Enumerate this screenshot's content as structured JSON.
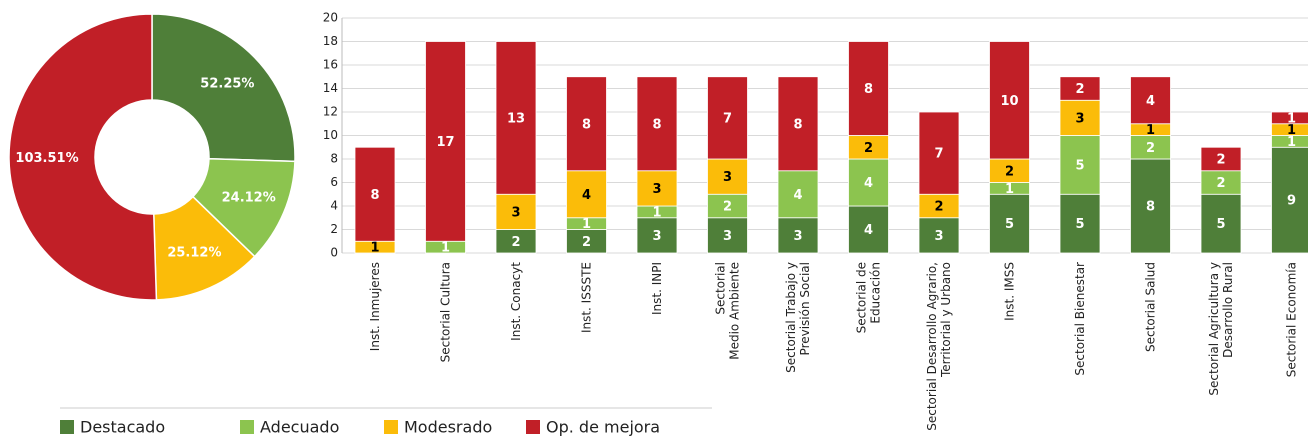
{
  "chart_data": [
    {
      "type": "donut",
      "values": [
        52.25,
        24.12,
        25.12,
        103.51
      ],
      "value_labels": [
        "52.25%",
        "24.12%",
        "25.12%",
        "103.51%"
      ],
      "colors": [
        "#4f7f39",
        "#8cc44f",
        "#fbbc09",
        "#c11f27"
      ]
    },
    {
      "type": "stacked_bar",
      "categories": [
        "Inst. Inmujeres",
        "Sectorial Cultura",
        "Inst. Conacyt",
        "Inst. ISSSTE",
        "Inst. INPI",
        "Sectorial\nMedio Ambiente",
        "Sectorial Trabajo y\nPrevisión Social",
        "Sectorial de\nEducación",
        "Sectorial Desarrollo Agrario,\nTerritorial y Urbano",
        "Inst. IMSS",
        "Sectorial Bienestar",
        "Sectorial Salud",
        "Sectorial Agricultura y\nDesarrollo Rural",
        "Sectorial Economía"
      ],
      "series": [
        {
          "name": "Destacado",
          "color": "#4f7f39",
          "values": [
            0,
            0,
            2,
            2,
            3,
            3,
            3,
            4,
            3,
            5,
            5,
            8,
            5,
            9
          ]
        },
        {
          "name": "Adecuado",
          "color": "#8cc44f",
          "values": [
            0,
            1,
            0,
            1,
            1,
            2,
            4,
            4,
            0,
            1,
            5,
            2,
            2,
            1
          ]
        },
        {
          "name": "Modesrado",
          "color": "#fbbc09",
          "values": [
            1,
            0,
            3,
            4,
            3,
            3,
            0,
            2,
            2,
            2,
            3,
            1,
            0,
            1
          ]
        },
        {
          "name": "Op. de mejora",
          "color": "#c11f27",
          "values": [
            8,
            17,
            13,
            8,
            8,
            7,
            8,
            8,
            7,
            10,
            2,
            4,
            2,
            1
          ]
        }
      ],
      "ylim": [
        0,
        20
      ],
      "yticks": [
        0,
        2,
        4,
        6,
        8,
        10,
        12,
        14,
        16,
        18,
        20
      ],
      "grid": true,
      "legend": "bottom"
    }
  ]
}
